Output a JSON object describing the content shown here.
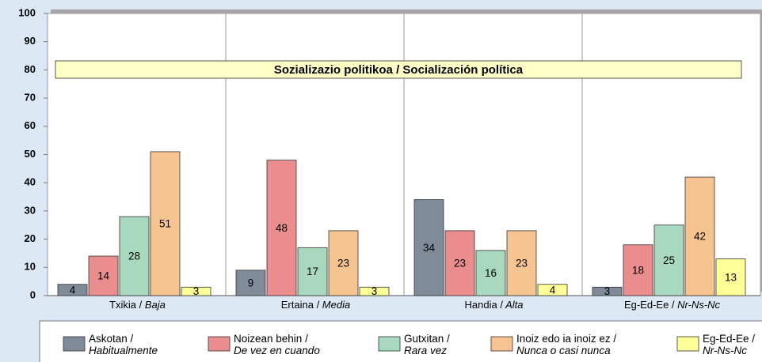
{
  "chart_data": {
    "type": "bar",
    "title": "Sozializazio politikoa / Socialización política",
    "categories": [
      "Txikia / Baja",
      "Ertaina / Media",
      "Handia / Alta",
      "Eg-Ed-Ee / Nr-Ns-Nc"
    ],
    "series": [
      {
        "name": "Askotan / Habitualmente",
        "color": "#7f8b98",
        "values": [
          4,
          9,
          34,
          3
        ]
      },
      {
        "name": "Noizean behin / De vez en cuando",
        "color": "#ea8d8e",
        "values": [
          14,
          48,
          23,
          18
        ]
      },
      {
        "name": "Gutxitan / Rara vez",
        "color": "#a8d8bd",
        "values": [
          28,
          17,
          16,
          25
        ]
      },
      {
        "name": "Inoiz edo ia inoiz ez / Nunca o casi nunca",
        "color": "#f6c490",
        "values": [
          51,
          23,
          23,
          42
        ]
      },
      {
        "name": "Eg-Ed-Ee / Nr-Ns-Nc",
        "color": "#ffff99",
        "values": [
          3,
          3,
          4,
          13
        ]
      }
    ],
    "ylim": [
      0,
      100
    ],
    "yticks": [
      0,
      10,
      20,
      30,
      40,
      50,
      60,
      70,
      80,
      90,
      100
    ],
    "grid": false
  }
}
